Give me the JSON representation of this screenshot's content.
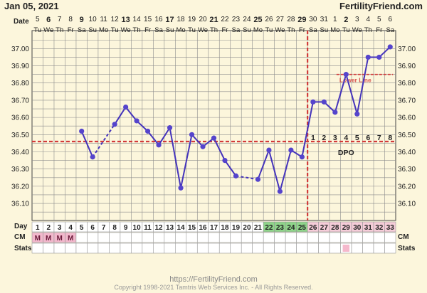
{
  "header": {
    "date_label": "Jan 05, 2021",
    "brand": "FertilityFriend.com",
    "date_row_label": "Date"
  },
  "footer": {
    "url": "https://FertilityFriend.com",
    "copyright": "Copyright 1998-2021 Tamtris Web Services Inc. - All Rights Reserved."
  },
  "rows": {
    "day_label": "Day",
    "cm_label": "CM",
    "stats_label": "Stats"
  },
  "coverline_label": "Lower Line",
  "dpo_label": "DPO",
  "colors": {
    "line": "#4433bb",
    "point": "#5544cc",
    "coverline": "#d23a3a",
    "grid": "#8c8c8c",
    "green_day": "#8fd48a",
    "pink_day": "#f5ccd8",
    "cm_mark": "#f2b8cc",
    "stats_mark": "#f5b8cc"
  },
  "chart_data": {
    "type": "line",
    "dates": [
      "5",
      "6",
      "7",
      "8",
      "9",
      "10",
      "11",
      "12",
      "13",
      "14",
      "15",
      "16",
      "17",
      "18",
      "19",
      "20",
      "21",
      "22",
      "23",
      "24",
      "25",
      "26",
      "27",
      "28",
      "29",
      "30",
      "31",
      "1",
      "2",
      "3",
      "4",
      "5",
      "6"
    ],
    "weekdays": [
      "Tu",
      "We",
      "Th",
      "Fr",
      "Sa",
      "Su",
      "Mo",
      "Tu",
      "We",
      "Th",
      "Fr",
      "Sa",
      "Su",
      "Mo",
      "Tu",
      "We",
      "Th",
      "Fr",
      "Sa",
      "Su",
      "Mo",
      "Tu",
      "We",
      "Th",
      "Fr",
      "Sa",
      "Su",
      "Mo",
      "Tu",
      "We",
      "Th",
      "Fr",
      "Sa"
    ],
    "bold_dates": [
      5,
      9,
      13,
      17,
      21,
      25,
      29,
      2
    ],
    "cycle_days": [
      "1",
      "2",
      "3",
      "4",
      "5",
      "6",
      "7",
      "8",
      "9",
      "10",
      "11",
      "12",
      "13",
      "14",
      "15",
      "16",
      "17",
      "18",
      "19",
      "20",
      "21",
      "22",
      "23",
      "24",
      "25",
      "26",
      "27",
      "28",
      "29",
      "30",
      "31",
      "32",
      "33"
    ],
    "green_days": [
      22,
      23,
      24,
      25
    ],
    "pink_days": [
      26,
      27,
      28,
      29,
      30,
      31,
      32,
      33
    ],
    "cm": [
      "M",
      "M",
      "M",
      "M",
      "",
      "",
      "",
      "",
      "",
      "",
      "",
      "",
      "",
      "",
      "",
      "",
      "",
      "",
      "",
      "",
      "",
      "",
      "",
      "",
      "",
      "",
      "",
      "",
      "",
      "",
      "",
      "",
      ""
    ],
    "stats_marked_days": [
      29
    ],
    "y_ticks": [
      "37.00",
      "36.90",
      "36.80",
      "36.70",
      "36.60",
      "36.50",
      "36.40",
      "36.30",
      "36.20",
      "36.10"
    ],
    "ylim": [
      36.03,
      37.08
    ],
    "temps": [
      null,
      null,
      null,
      null,
      36.52,
      36.37,
      null,
      36.56,
      36.66,
      36.58,
      36.52,
      36.44,
      36.54,
      36.19,
      36.5,
      36.43,
      36.48,
      36.35,
      36.26,
      null,
      36.24,
      36.41,
      36.17,
      36.41,
      36.37,
      36.69,
      36.69,
      36.63,
      36.85,
      36.62,
      36.95,
      36.95,
      37.01
    ],
    "dashed_segments": [
      [
        6,
        8
      ],
      [
        19,
        21
      ]
    ],
    "coverline": 36.46,
    "ovulation_day": 25,
    "dpo_numbers": [
      "1",
      "2",
      "3",
      "4",
      "5",
      "6",
      "7",
      "8"
    ],
    "dpo_days": [
      26,
      27,
      28,
      29,
      30,
      31,
      32,
      33
    ],
    "lower_line_value": 36.85,
    "lower_line_days": [
      28,
      33
    ]
  }
}
